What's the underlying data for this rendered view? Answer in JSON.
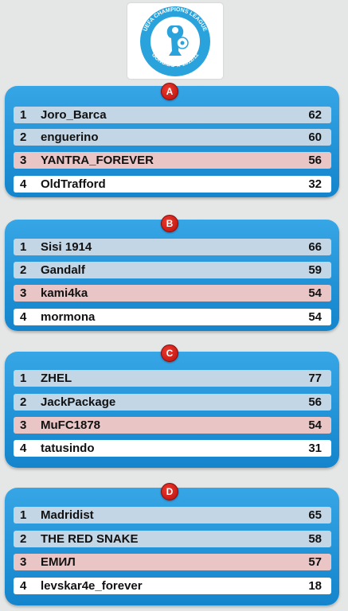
{
  "logo": {
    "ring_text": "UEFA CHAMPIONS LEAGUE",
    "bottom_text": "GONG.BG ★ 2011/12",
    "colors": {
      "ring": "#2aa3dc",
      "text": "#ffffff"
    }
  },
  "colors": {
    "background": "#e4e7e6",
    "panel": "#1a8ad2",
    "badge": "#d21c1c",
    "row_qualify": "#c3d6e6",
    "row_third": "#e9c5c6",
    "row_last": "#ffffff"
  },
  "groups": [
    {
      "letter": "A",
      "rows": [
        {
          "rank": "1",
          "name": "Joro_Barca",
          "points": "62"
        },
        {
          "rank": "2",
          "name": "enguerino",
          "points": "60"
        },
        {
          "rank": "3",
          "name": "YANTRA_FOREVER",
          "points": "56"
        },
        {
          "rank": "4",
          "name": "OldTrafford",
          "points": "32"
        }
      ]
    },
    {
      "letter": "B",
      "rows": [
        {
          "rank": "1",
          "name": "Sisi 1914",
          "points": "66"
        },
        {
          "rank": "2",
          "name": "Gandalf",
          "points": "59"
        },
        {
          "rank": "3",
          "name": "kami4ka",
          "points": "54"
        },
        {
          "rank": "4",
          "name": "mormona",
          "points": "54"
        }
      ]
    },
    {
      "letter": "C",
      "rows": [
        {
          "rank": "1",
          "name": "ZHEL",
          "points": "77"
        },
        {
          "rank": "2",
          "name": "JackPackage",
          "points": "56"
        },
        {
          "rank": "3",
          "name": "MuFC1878",
          "points": "54"
        },
        {
          "rank": "4",
          "name": "tatusindo",
          "points": "31"
        }
      ]
    },
    {
      "letter": "D",
      "rows": [
        {
          "rank": "1",
          "name": "Madridist",
          "points": "65"
        },
        {
          "rank": "2",
          "name": "THE RED SNAKE",
          "points": "58"
        },
        {
          "rank": "3",
          "name": "ЕМИЛ",
          "points": "57"
        },
        {
          "rank": "4",
          "name": "levskar4e_forever",
          "points": "18"
        }
      ]
    }
  ]
}
